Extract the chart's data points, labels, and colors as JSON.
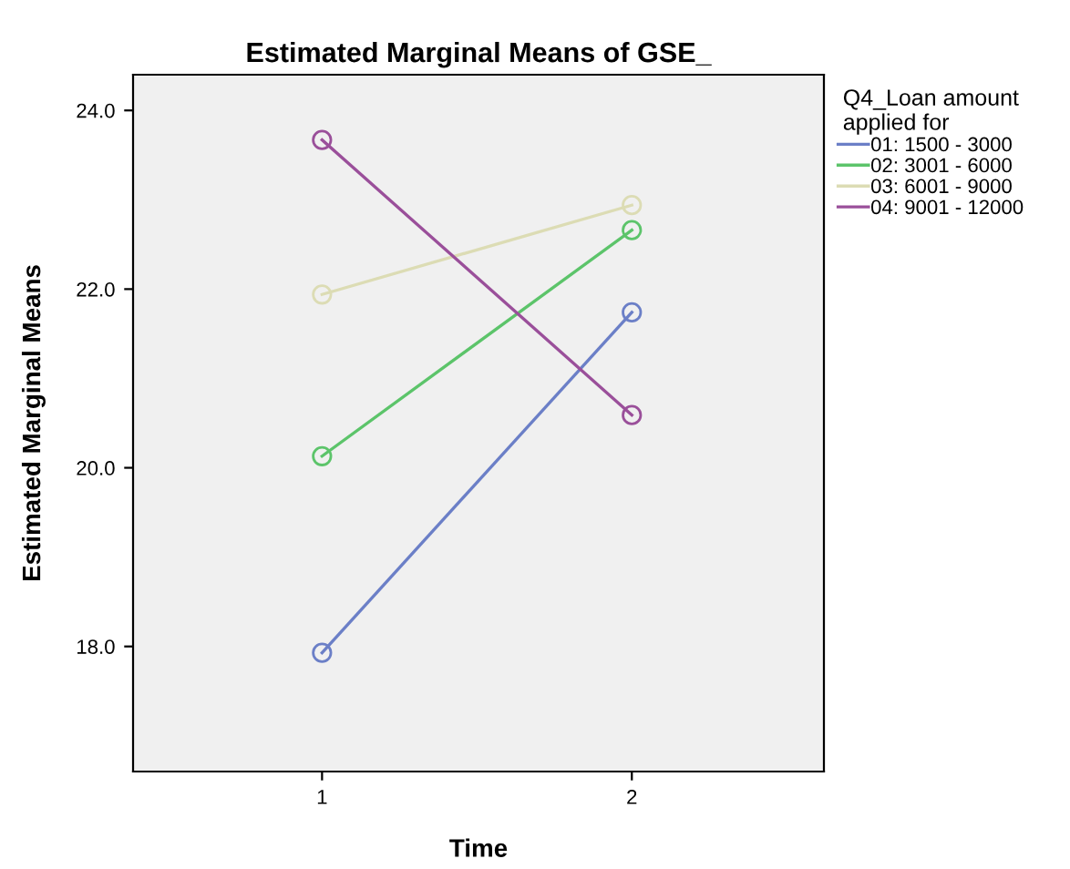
{
  "chart_data": {
    "type": "line",
    "title": "Estimated Marginal Means of GSE_",
    "xlabel": "Time",
    "ylabel": "Estimated Marginal Means",
    "legend_title": "Q4_Loan amount\napplied for",
    "x": [
      1,
      2
    ],
    "series": [
      {
        "name": "01: 1500 - 3000",
        "color": "#6b7fc7",
        "values": [
          17.93,
          21.74
        ]
      },
      {
        "name": "02: 3001 - 6000",
        "color": "#5cc46a",
        "values": [
          20.13,
          22.66
        ]
      },
      {
        "name": "03: 6001 - 9000",
        "color": "#dcdcb4",
        "values": [
          21.94,
          22.94
        ]
      },
      {
        "name": "04: 9001 - 12000",
        "color": "#9a4f9a",
        "values": [
          23.67,
          20.59
        ]
      }
    ],
    "xlim": [
      0.39,
      2.62
    ],
    "ylim": [
      16.6,
      24.4
    ],
    "xticks": [
      1,
      2
    ],
    "yticks": [
      {
        "value": 18,
        "label": "18.0"
      },
      {
        "value": 20,
        "label": "20.0"
      },
      {
        "value": 22,
        "label": "22.0"
      },
      {
        "value": 24,
        "label": "24.0"
      }
    ],
    "grid": false,
    "legend": "top right",
    "marker": "circle",
    "line_style": "solid"
  }
}
